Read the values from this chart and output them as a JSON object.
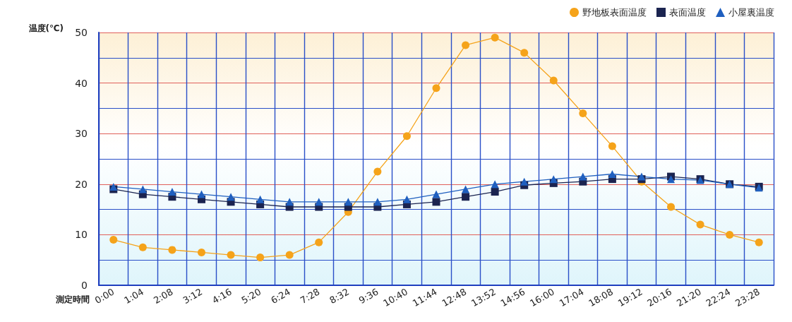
{
  "chart_data": {
    "type": "line",
    "ylabel": "温度(℃)",
    "xlabel": "測定時間",
    "categories": [
      "0:00",
      "1:04",
      "2:08",
      "3:12",
      "4:16",
      "5:20",
      "6:24",
      "7:28",
      "8:32",
      "9:36",
      "10:40",
      "11:44",
      "12:48",
      "13:52",
      "14:56",
      "16:00",
      "17:04",
      "18:08",
      "19:12",
      "20:16",
      "21:20",
      "22:24",
      "23:28"
    ],
    "series": [
      {
        "name": "野地板表面温度",
        "color": "#f5a31a",
        "marker": "circle",
        "values": [
          9,
          7.5,
          7,
          6.5,
          6,
          5.5,
          6,
          8.5,
          14.5,
          22.5,
          29.5,
          39,
          47.5,
          49,
          46,
          40.5,
          34,
          27.5,
          20.5,
          15.5,
          12,
          10,
          8.5
        ]
      },
      {
        "name": "表面温度",
        "color": "#1b2450",
        "marker": "square",
        "values": [
          19,
          18,
          17.5,
          17,
          16.5,
          16,
          15.5,
          15.5,
          15.5,
          15.5,
          16,
          16.5,
          17.5,
          18.5,
          19.8,
          20.2,
          20.5,
          21,
          21,
          21.5,
          21,
          20,
          19.5
        ]
      },
      {
        "name": "小屋裏温度",
        "color": "#1f5fbf",
        "marker": "triangle",
        "values": [
          19.5,
          19,
          18.5,
          18,
          17.5,
          17,
          16.5,
          16.5,
          16.5,
          16.5,
          17,
          18,
          19,
          20,
          20.5,
          21,
          21.5,
          22,
          21.5,
          21,
          20.8,
          20,
          19.3
        ]
      }
    ],
    "ylim": [
      0,
      50
    ],
    "yticks": [
      0,
      {
        "value": 5,
        "label": null
      },
      10,
      {
        "value": 15,
        "label": null
      },
      20,
      {
        "value": 25,
        "label": null
      },
      30,
      {
        "value": 35,
        "label": null
      },
      40,
      {
        "value": 45,
        "label": null
      },
      50
    ],
    "grid": true,
    "legend": "top right",
    "line_style": "solid"
  }
}
